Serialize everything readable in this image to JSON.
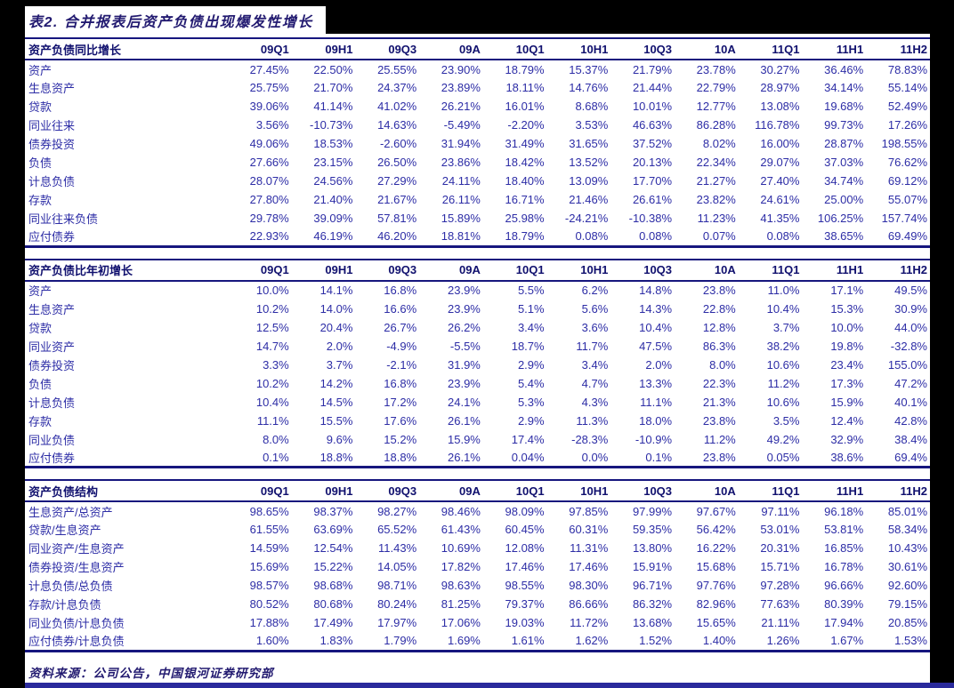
{
  "page": {
    "title": "表2. 合并报表后资产负债出现爆发性增长",
    "source_note": "资料来源：公司公告，中国银河证券研究部"
  },
  "colors": {
    "page_margin": "#000000",
    "content_background": "#ffffff",
    "value_text": "#2d2da6",
    "header_text": "#10106e",
    "caption_text": "#221a70",
    "table_border": "#16167e",
    "bottom_bar": "#2a2a9c"
  },
  "columns": [
    "09Q1",
    "09H1",
    "09Q3",
    "09A",
    "10Q1",
    "10H1",
    "10Q3",
    "10A",
    "11Q1",
    "11H1",
    "11H2"
  ],
  "tables": [
    {
      "name": "table-yoy-growth",
      "title": "资产负债同比增长",
      "rows": [
        {
          "label": "资产",
          "values": [
            "27.45%",
            "22.50%",
            "25.55%",
            "23.90%",
            "18.79%",
            "15.37%",
            "21.79%",
            "23.78%",
            "30.27%",
            "36.46%",
            "78.83%"
          ]
        },
        {
          "label": "生息资产",
          "values": [
            "25.75%",
            "21.70%",
            "24.37%",
            "23.89%",
            "18.11%",
            "14.76%",
            "21.44%",
            "22.79%",
            "28.97%",
            "34.14%",
            "55.14%"
          ]
        },
        {
          "label": "贷款",
          "values": [
            "39.06%",
            "41.14%",
            "41.02%",
            "26.21%",
            "16.01%",
            "8.68%",
            "10.01%",
            "12.77%",
            "13.08%",
            "19.68%",
            "52.49%"
          ]
        },
        {
          "label": "同业往来",
          "values": [
            "3.56%",
            "-10.73%",
            "14.63%",
            "-5.49%",
            "-2.20%",
            "3.53%",
            "46.63%",
            "86.28%",
            "116.78%",
            "99.73%",
            "17.26%"
          ]
        },
        {
          "label": "债券投资",
          "values": [
            "49.06%",
            "18.53%",
            "-2.60%",
            "31.94%",
            "31.49%",
            "31.65%",
            "37.52%",
            "8.02%",
            "16.00%",
            "28.87%",
            "198.55%"
          ]
        },
        {
          "label": "负债",
          "values": [
            "27.66%",
            "23.15%",
            "26.50%",
            "23.86%",
            "18.42%",
            "13.52%",
            "20.13%",
            "22.34%",
            "29.07%",
            "37.03%",
            "76.62%"
          ]
        },
        {
          "label": "计息负债",
          "values": [
            "28.07%",
            "24.56%",
            "27.29%",
            "24.11%",
            "18.40%",
            "13.09%",
            "17.70%",
            "21.27%",
            "27.40%",
            "34.74%",
            "69.12%"
          ]
        },
        {
          "label": "存款",
          "values": [
            "27.80%",
            "21.40%",
            "21.67%",
            "26.11%",
            "16.71%",
            "21.46%",
            "26.61%",
            "23.82%",
            "24.61%",
            "25.00%",
            "55.07%"
          ]
        },
        {
          "label": "同业往来负债",
          "values": [
            "29.78%",
            "39.09%",
            "57.81%",
            "15.89%",
            "25.98%",
            "-24.21%",
            "-10.38%",
            "11.23%",
            "41.35%",
            "106.25%",
            "157.74%"
          ]
        },
        {
          "label": "应付债券",
          "values": [
            "22.93%",
            "46.19%",
            "46.20%",
            "18.81%",
            "18.79%",
            "0.08%",
            "0.08%",
            "0.07%",
            "0.08%",
            "38.65%",
            "69.49%"
          ]
        }
      ]
    },
    {
      "name": "table-ytd-growth",
      "title": "资产负债比年初增长",
      "rows": [
        {
          "label": "资产",
          "values": [
            "10.0%",
            "14.1%",
            "16.8%",
            "23.9%",
            "5.5%",
            "6.2%",
            "14.8%",
            "23.8%",
            "11.0%",
            "17.1%",
            "49.5%"
          ]
        },
        {
          "label": "生息资产",
          "values": [
            "10.2%",
            "14.0%",
            "16.6%",
            "23.9%",
            "5.1%",
            "5.6%",
            "14.3%",
            "22.8%",
            "10.4%",
            "15.3%",
            "30.9%"
          ]
        },
        {
          "label": "贷款",
          "values": [
            "12.5%",
            "20.4%",
            "26.7%",
            "26.2%",
            "3.4%",
            "3.6%",
            "10.4%",
            "12.8%",
            "3.7%",
            "10.0%",
            "44.0%"
          ]
        },
        {
          "label": "同业资产",
          "values": [
            "14.7%",
            "2.0%",
            "-4.9%",
            "-5.5%",
            "18.7%",
            "11.7%",
            "47.5%",
            "86.3%",
            "38.2%",
            "19.8%",
            "-32.8%"
          ]
        },
        {
          "label": "债券投资",
          "values": [
            "3.3%",
            "3.7%",
            "-2.1%",
            "31.9%",
            "2.9%",
            "3.4%",
            "2.0%",
            "8.0%",
            "10.6%",
            "23.4%",
            "155.0%"
          ]
        },
        {
          "label": "负债",
          "values": [
            "10.2%",
            "14.2%",
            "16.8%",
            "23.9%",
            "5.4%",
            "4.7%",
            "13.3%",
            "22.3%",
            "11.2%",
            "17.3%",
            "47.2%"
          ]
        },
        {
          "label": "计息负债",
          "values": [
            "10.4%",
            "14.5%",
            "17.2%",
            "24.1%",
            "5.3%",
            "4.3%",
            "11.1%",
            "21.3%",
            "10.6%",
            "15.9%",
            "40.1%"
          ]
        },
        {
          "label": "存款",
          "values": [
            "11.1%",
            "15.5%",
            "17.6%",
            "26.1%",
            "2.9%",
            "11.3%",
            "18.0%",
            "23.8%",
            "3.5%",
            "12.4%",
            "42.8%"
          ]
        },
        {
          "label": "同业负债",
          "values": [
            "8.0%",
            "9.6%",
            "15.2%",
            "15.9%",
            "17.4%",
            "-28.3%",
            "-10.9%",
            "11.2%",
            "49.2%",
            "32.9%",
            "38.4%"
          ]
        },
        {
          "label": "应付债券",
          "values": [
            "0.1%",
            "18.8%",
            "18.8%",
            "26.1%",
            "0.04%",
            "0.0%",
            "0.1%",
            "23.8%",
            "0.05%",
            "38.6%",
            "69.4%"
          ]
        }
      ]
    },
    {
      "name": "table-structure",
      "title": "资产负债结构",
      "rows": [
        {
          "label": "生息资产/总资产",
          "values": [
            "98.65%",
            "98.37%",
            "98.27%",
            "98.46%",
            "98.09%",
            "97.85%",
            "97.99%",
            "97.67%",
            "97.11%",
            "96.18%",
            "85.01%"
          ]
        },
        {
          "label": "贷款/生息资产",
          "values": [
            "61.55%",
            "63.69%",
            "65.52%",
            "61.43%",
            "60.45%",
            "60.31%",
            "59.35%",
            "56.42%",
            "53.01%",
            "53.81%",
            "58.34%"
          ]
        },
        {
          "label": "同业资产/生息资产",
          "values": [
            "14.59%",
            "12.54%",
            "11.43%",
            "10.69%",
            "12.08%",
            "11.31%",
            "13.80%",
            "16.22%",
            "20.31%",
            "16.85%",
            "10.43%"
          ]
        },
        {
          "label": "债券投资/生息资产",
          "values": [
            "15.69%",
            "15.22%",
            "14.05%",
            "17.82%",
            "17.46%",
            "17.46%",
            "15.91%",
            "15.68%",
            "15.71%",
            "16.78%",
            "30.61%"
          ]
        },
        {
          "label": "计息负债/总负债",
          "values": [
            "98.57%",
            "98.68%",
            "98.71%",
            "98.63%",
            "98.55%",
            "98.30%",
            "96.71%",
            "97.76%",
            "97.28%",
            "96.66%",
            "92.60%"
          ]
        },
        {
          "label": "存款/计息负债",
          "values": [
            "80.52%",
            "80.68%",
            "80.24%",
            "81.25%",
            "79.37%",
            "86.66%",
            "86.32%",
            "82.96%",
            "77.63%",
            "80.39%",
            "79.15%"
          ]
        },
        {
          "label": "同业负债/计息负债",
          "values": [
            "17.88%",
            "17.49%",
            "17.97%",
            "17.06%",
            "19.03%",
            "11.72%",
            "13.68%",
            "15.65%",
            "21.11%",
            "17.94%",
            "20.85%"
          ]
        },
        {
          "label": "应付债券/计息负债",
          "values": [
            "1.60%",
            "1.83%",
            "1.79%",
            "1.69%",
            "1.61%",
            "1.62%",
            "1.52%",
            "1.40%",
            "1.26%",
            "1.67%",
            "1.53%"
          ]
        }
      ]
    }
  ]
}
